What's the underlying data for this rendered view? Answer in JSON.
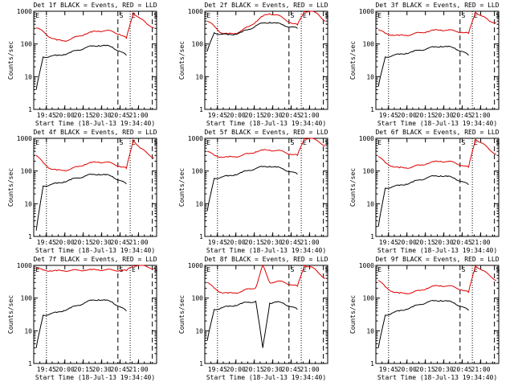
{
  "chart_data": [
    {
      "type": "line",
      "title": "Det 1f BLACK = Events, RED = LLD",
      "ylabel": "Counts/sec",
      "xlabel": "Start Time (18-Jul-13 19:34:40)",
      "xticks": [
        "19:45",
        "20:00",
        "20:15",
        "20:30",
        "20:45",
        "21:00"
      ],
      "yticks": [
        "1",
        "10",
        "100",
        "1000"
      ],
      "ylim": [
        1,
        1000
      ],
      "yscale": "log",
      "markers": [
        "E",
        "S",
        "E",
        "S"
      ],
      "series": [
        {
          "color": "#e00000",
          "values": [
            310,
            240,
            160,
            130,
            125,
            140,
            170,
            200,
            230,
            250,
            255,
            240,
            200,
            150,
            900,
            600,
            400,
            320
          ]
        },
        {
          "color": "#000000",
          "values": [
            4,
            40,
            42,
            44,
            48,
            55,
            65,
            75,
            85,
            90,
            88,
            80,
            60,
            45,
            null,
            null,
            null,
            null
          ]
        }
      ]
    },
    {
      "type": "line",
      "title": "Det 2f BLACK = Events, RED = LLD",
      "ylabel": "Counts/sec",
      "xlabel": "Start Time (18-Jul-13 19:34:40)",
      "xticks": [
        "19:45",
        "20:00",
        "20:15",
        "20:30",
        "20:45",
        "21:00"
      ],
      "yticks": [
        "1",
        "10",
        "100",
        "1000"
      ],
      "ylim": [
        1,
        1000
      ],
      "yscale": "log",
      "markers": [
        "E",
        "S",
        "E",
        "S"
      ],
      "series": [
        {
          "color": "#e00000",
          "values": [
            500,
            350,
            220,
            200,
            210,
            260,
            340,
            480,
            700,
            850,
            780,
            600,
            450,
            380,
            1000,
            1000,
            800,
            500
          ]
        },
        {
          "color": "#000000",
          "values": [
            60,
            220,
            200,
            190,
            200,
            230,
            280,
            360,
            430,
            460,
            430,
            380,
            330,
            300,
            null,
            null,
            null,
            null
          ]
        }
      ]
    },
    {
      "type": "line",
      "title": "Det 3f BLACK = Events, RED = LLD",
      "ylabel": "Counts/sec",
      "xlabel": "Start Time (18-Jul-13 19:34:40)",
      "xticks": [
        "19:45",
        "20:00",
        "20:15",
        "20:30",
        "20:45",
        "21:00"
      ],
      "yticks": [
        "1",
        "10",
        "100",
        "1000"
      ],
      "ylim": [
        1,
        1000
      ],
      "yscale": "log",
      "markers": [
        "E",
        "S",
        "E",
        "S"
      ],
      "series": [
        {
          "color": "#e00000",
          "values": [
            270,
            210,
            190,
            180,
            185,
            200,
            220,
            240,
            260,
            270,
            265,
            250,
            230,
            210,
            950,
            700,
            500,
            450
          ]
        },
        {
          "color": "#000000",
          "values": [
            5,
            40,
            44,
            48,
            52,
            58,
            65,
            72,
            80,
            85,
            82,
            75,
            60,
            45,
            null,
            null,
            null,
            null
          ]
        }
      ]
    },
    {
      "type": "line",
      "title": "Det 4f BLACK = Events, RED = LLD",
      "ylabel": "Counts/sec",
      "xlabel": "Start Time (18-Jul-13 19:34:40)",
      "xticks": [
        "19:45",
        "20:00",
        "20:15",
        "20:30",
        "20:45",
        "21:00"
      ],
      "yticks": [
        "1",
        "10",
        "100",
        "1000"
      ],
      "ylim": [
        1,
        1000
      ],
      "yscale": "log",
      "markers": [
        "E",
        "S",
        "E",
        "S"
      ],
      "series": [
        {
          "color": "#e00000",
          "values": [
            300,
            180,
            120,
            105,
            105,
            115,
            135,
            160,
            180,
            190,
            185,
            170,
            140,
            120,
            900,
            500,
            350,
            250
          ]
        },
        {
          "color": "#000000",
          "values": [
            1.5,
            35,
            38,
            42,
            47,
            54,
            62,
            70,
            78,
            80,
            76,
            68,
            52,
            40,
            null,
            null,
            null,
            null
          ]
        }
      ]
    },
    {
      "type": "line",
      "title": "Det 5f BLACK = Events, RED = LLD",
      "ylabel": "Counts/sec",
      "xlabel": "Start Time (18-Jul-13 19:34:40)",
      "xticks": [
        "19:45",
        "20:00",
        "20:15",
        "20:30",
        "20:45",
        "21:00"
      ],
      "yticks": [
        "1",
        "10",
        "100",
        "1000"
      ],
      "ylim": [
        1,
        1000
      ],
      "yscale": "log",
      "markers": [
        "E",
        "S",
        "E",
        "S"
      ],
      "series": [
        {
          "color": "#e00000",
          "values": [
            400,
            300,
            270,
            265,
            275,
            300,
            340,
            390,
            430,
            440,
            420,
            390,
            330,
            300,
            1000,
            1000,
            800,
            600
          ]
        },
        {
          "color": "#000000",
          "values": [
            6,
            60,
            65,
            70,
            78,
            90,
            105,
            120,
            135,
            140,
            130,
            115,
            95,
            80,
            null,
            null,
            null,
            null
          ]
        }
      ]
    },
    {
      "type": "line",
      "title": "Det 6f BLACK = Events, RED = LLD",
      "ylabel": "Counts/sec",
      "xlabel": "Start Time (18-Jul-13 19:34:40)",
      "xticks": [
        "19:45",
        "20:00",
        "20:15",
        "20:30",
        "20:45",
        "21:00"
      ],
      "yticks": [
        "1",
        "10",
        "100",
        "1000"
      ],
      "ylim": [
        1,
        1000
      ],
      "yscale": "log",
      "markers": [
        "E",
        "S",
        "E",
        "S"
      ],
      "series": [
        {
          "color": "#e00000",
          "values": [
            280,
            180,
            140,
            125,
            125,
            135,
            150,
            170,
            190,
            200,
            195,
            180,
            150,
            130,
            950,
            700,
            450,
            330
          ]
        },
        {
          "color": "#000000",
          "values": [
            2,
            30,
            33,
            36,
            40,
            46,
            54,
            62,
            70,
            72,
            68,
            60,
            48,
            38,
            null,
            null,
            null,
            null
          ]
        }
      ]
    },
    {
      "type": "line",
      "title": "Det 7f BLACK = Events, RED = LLD",
      "ylabel": "Counts/sec",
      "xlabel": "Start Time (18-Jul-13 19:34:40)",
      "xticks": [
        "19:45",
        "20:00",
        "20:15",
        "20:30",
        "20:45",
        "21:00"
      ],
      "yticks": [
        "1",
        "10",
        "100",
        "1000"
      ],
      "ylim": [
        1,
        1000
      ],
      "yscale": "log",
      "markers": [
        "E",
        "S",
        "E",
        "S"
      ],
      "series": [
        {
          "color": "#e00000",
          "values": [
            800,
            720,
            690,
            680,
            690,
            700,
            710,
            720,
            730,
            735,
            730,
            720,
            700,
            690,
            1000,
            1000,
            900,
            800
          ]
        },
        {
          "color": "#000000",
          "values": [
            3,
            30,
            33,
            36,
            42,
            50,
            60,
            72,
            85,
            90,
            85,
            75,
            55,
            40,
            null,
            null,
            null,
            null
          ]
        }
      ]
    },
    {
      "type": "line",
      "title": "Det 8f BLACK = Events, RED = LLD",
      "ylabel": "Counts/sec",
      "xlabel": "Start Time (18-Jul-13 19:34:40)",
      "xticks": [
        "19:45",
        "20:00",
        "20:15",
        "20:30",
        "20:45",
        "21:00"
      ],
      "yticks": [
        "1",
        "10",
        "100",
        "1000"
      ],
      "ylim": [
        1,
        1000
      ],
      "yscale": "log",
      "markers": [
        "E",
        "S",
        "E",
        "S"
      ],
      "series": [
        {
          "color": "#e00000",
          "values": [
            300,
            200,
            150,
            140,
            145,
            160,
            190,
            210,
            1000,
            300,
            320,
            310,
            260,
            230,
            1000,
            900,
            600,
            400
          ]
        },
        {
          "color": "#000000",
          "values": [
            5,
            45,
            50,
            55,
            60,
            68,
            75,
            80,
            3,
            70,
            75,
            70,
            55,
            45,
            null,
            null,
            null,
            null
          ]
        }
      ]
    },
    {
      "type": "line",
      "title": "Det 9f BLACK = Events, RED = LLD",
      "ylabel": "Counts/sec",
      "xlabel": "Start Time (18-Jul-13 19:34:40)",
      "xticks": [
        "19:45",
        "20:00",
        "20:15",
        "20:30",
        "20:45",
        "21:00"
      ],
      "yticks": [
        "1",
        "10",
        "100",
        "1000"
      ],
      "ylim": [
        1,
        1000
      ],
      "yscale": "log",
      "markers": [
        "E",
        "S",
        "E",
        "S"
      ],
      "series": [
        {
          "color": "#e00000",
          "values": [
            350,
            220,
            160,
            140,
            140,
            150,
            170,
            200,
            230,
            240,
            235,
            215,
            180,
            150,
            1000,
            700,
            500,
            350
          ]
        },
        {
          "color": "#000000",
          "values": [
            3,
            30,
            35,
            40,
            46,
            54,
            64,
            74,
            82,
            85,
            80,
            70,
            55,
            42,
            null,
            null,
            null,
            null
          ]
        }
      ]
    }
  ]
}
